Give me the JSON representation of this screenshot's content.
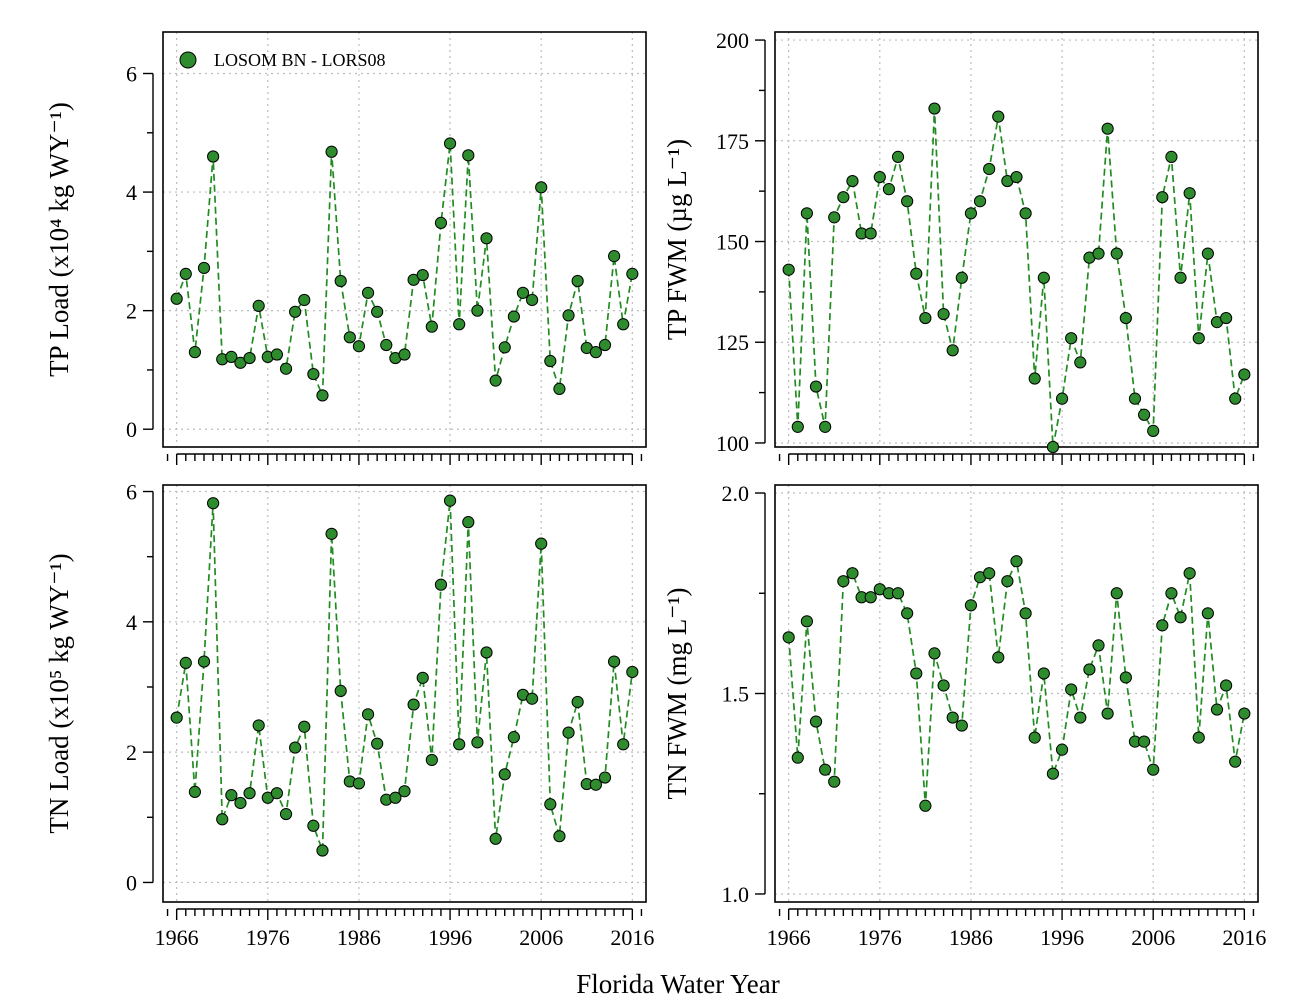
{
  "figure": {
    "xlabel": "Florida Water Year",
    "legend_label": "LOSOM BN - LORS08",
    "series_color": "#2e8b2e",
    "line_color": "#228b22"
  },
  "chart_data": [
    {
      "type": "line",
      "ylabel": "TP Load (x10⁴ kg WY⁻¹)",
      "ylim": [
        -0.3,
        6.7
      ],
      "yticks": [
        0,
        2,
        4,
        6
      ],
      "xlim": [
        1964.5,
        2017.5
      ],
      "xticks": [
        1966,
        1976,
        1986,
        1996,
        2006,
        2016
      ],
      "grid": true,
      "legend": "top-left",
      "series": [
        {
          "name": "LOSOM BN - LORS08",
          "x": [
            1966,
            1967,
            1968,
            1969,
            1970,
            1971,
            1972,
            1973,
            1974,
            1975,
            1976,
            1977,
            1978,
            1979,
            1980,
            1981,
            1982,
            1983,
            1984,
            1985,
            1986,
            1987,
            1988,
            1989,
            1990,
            1991,
            1992,
            1993,
            1994,
            1995,
            1996,
            1997,
            1998,
            1999,
            2000,
            2001,
            2002,
            2003,
            2004,
            2005,
            2006,
            2007,
            2008,
            2009,
            2010,
            2011,
            2012,
            2013,
            2014,
            2015,
            2016
          ],
          "y": [
            2.2,
            2.62,
            1.3,
            2.72,
            4.6,
            1.18,
            1.22,
            1.12,
            1.2,
            2.08,
            1.22,
            1.26,
            1.02,
            1.98,
            2.18,
            0.93,
            0.57,
            4.68,
            2.5,
            1.55,
            1.4,
            2.3,
            1.98,
            1.42,
            1.2,
            1.26,
            2.52,
            2.6,
            1.73,
            3.48,
            4.82,
            1.77,
            4.62,
            2.0,
            3.22,
            0.82,
            1.38,
            1.9,
            2.3,
            2.18,
            4.08,
            1.15,
            0.68,
            1.92,
            2.5,
            1.37,
            1.3,
            1.42,
            2.92,
            1.77,
            2.62
          ]
        }
      ]
    },
    {
      "type": "line",
      "ylabel": "TP FWM (µg L⁻¹)",
      "ylim": [
        99,
        202
      ],
      "yticks": [
        100,
        125,
        150,
        175,
        200
      ],
      "xlim": [
        1964.5,
        2017.5
      ],
      "xticks": [
        1966,
        1976,
        1986,
        1996,
        2006,
        2016
      ],
      "grid": true,
      "series": [
        {
          "name": "LOSOM BN - LORS08",
          "x": [
            1966,
            1967,
            1968,
            1969,
            1970,
            1971,
            1972,
            1973,
            1974,
            1975,
            1976,
            1977,
            1978,
            1979,
            1980,
            1981,
            1982,
            1983,
            1984,
            1985,
            1986,
            1987,
            1988,
            1989,
            1990,
            1991,
            1992,
            1993,
            1994,
            1995,
            1996,
            1997,
            1998,
            1999,
            2000,
            2001,
            2002,
            2003,
            2004,
            2005,
            2006,
            2007,
            2008,
            2009,
            2010,
            2011,
            2012,
            2013,
            2014,
            2015,
            2016
          ],
          "y": [
            143,
            104,
            157,
            114,
            104,
            156,
            161,
            165,
            152,
            152,
            166,
            163,
            171,
            160,
            142,
            131,
            183,
            132,
            123,
            141,
            157,
            160,
            168,
            181,
            165,
            166,
            157,
            116,
            141,
            99,
            111,
            126,
            120,
            146,
            147,
            178,
            147,
            131,
            111,
            107,
            103,
            161,
            171,
            141,
            162,
            126,
            147,
            130,
            131,
            111,
            117
          ]
        }
      ]
    },
    {
      "type": "line",
      "ylabel": "TN Load (x10⁵ kg WY⁻¹)",
      "ylim": [
        -0.3,
        6.1
      ],
      "yticks": [
        0,
        2,
        4,
        6
      ],
      "xlim": [
        1964.5,
        2017.5
      ],
      "xticks": [
        1966,
        1976,
        1986,
        1996,
        2006,
        2016
      ],
      "grid": true,
      "series": [
        {
          "name": "LOSOM BN - LORS08",
          "x": [
            1966,
            1967,
            1968,
            1969,
            1970,
            1971,
            1972,
            1973,
            1974,
            1975,
            1976,
            1977,
            1978,
            1979,
            1980,
            1981,
            1982,
            1983,
            1984,
            1985,
            1986,
            1987,
            1988,
            1989,
            1990,
            1991,
            1992,
            1993,
            1994,
            1995,
            1996,
            1997,
            1998,
            1999,
            2000,
            2001,
            2002,
            2003,
            2004,
            2005,
            2006,
            2007,
            2008,
            2009,
            2010,
            2011,
            2012,
            2013,
            2014,
            2015,
            2016
          ],
          "y": [
            2.53,
            3.37,
            1.39,
            3.39,
            5.82,
            0.97,
            1.34,
            1.22,
            1.37,
            2.41,
            1.3,
            1.37,
            1.05,
            2.07,
            2.39,
            0.87,
            0.49,
            5.35,
            2.94,
            1.55,
            1.52,
            2.58,
            2.13,
            1.27,
            1.3,
            1.4,
            2.73,
            3.14,
            1.88,
            4.57,
            5.86,
            2.12,
            5.53,
            2.15,
            3.53,
            0.67,
            1.66,
            2.23,
            2.88,
            2.82,
            5.2,
            1.2,
            0.71,
            2.3,
            2.77,
            1.51,
            1.5,
            1.61,
            3.39,
            2.12,
            3.23
          ]
        }
      ]
    },
    {
      "type": "line",
      "ylabel": "TN FWM (mg L⁻¹)",
      "ylim": [
        0.98,
        2.02
      ],
      "yticks": [
        1.0,
        1.5,
        2.0
      ],
      "xlim": [
        1964.5,
        2017.5
      ],
      "xticks": [
        1966,
        1976,
        1986,
        1996,
        2006,
        2016
      ],
      "grid": true,
      "series": [
        {
          "name": "LOSOM BN - LORS08",
          "x": [
            1966,
            1967,
            1968,
            1969,
            1970,
            1971,
            1972,
            1973,
            1974,
            1975,
            1976,
            1977,
            1978,
            1979,
            1980,
            1981,
            1982,
            1983,
            1984,
            1985,
            1986,
            1987,
            1988,
            1989,
            1990,
            1991,
            1992,
            1993,
            1994,
            1995,
            1996,
            1997,
            1998,
            1999,
            2000,
            2001,
            2002,
            2003,
            2004,
            2005,
            2006,
            2007,
            2008,
            2009,
            2010,
            2011,
            2012,
            2013,
            2014,
            2015,
            2016
          ],
          "y": [
            1.64,
            1.34,
            1.68,
            1.43,
            1.31,
            1.28,
            1.78,
            1.8,
            1.74,
            1.74,
            1.76,
            1.75,
            1.75,
            1.7,
            1.55,
            1.22,
            1.6,
            1.52,
            1.44,
            1.42,
            1.72,
            1.79,
            1.8,
            1.59,
            1.78,
            1.83,
            1.7,
            1.39,
            1.55,
            1.3,
            1.36,
            1.51,
            1.44,
            1.56,
            1.62,
            1.45,
            1.75,
            1.54,
            1.38,
            1.38,
            1.31,
            1.67,
            1.75,
            1.69,
            1.8,
            1.39,
            1.7,
            1.46,
            1.52,
            1.33,
            1.45
          ]
        }
      ]
    }
  ]
}
